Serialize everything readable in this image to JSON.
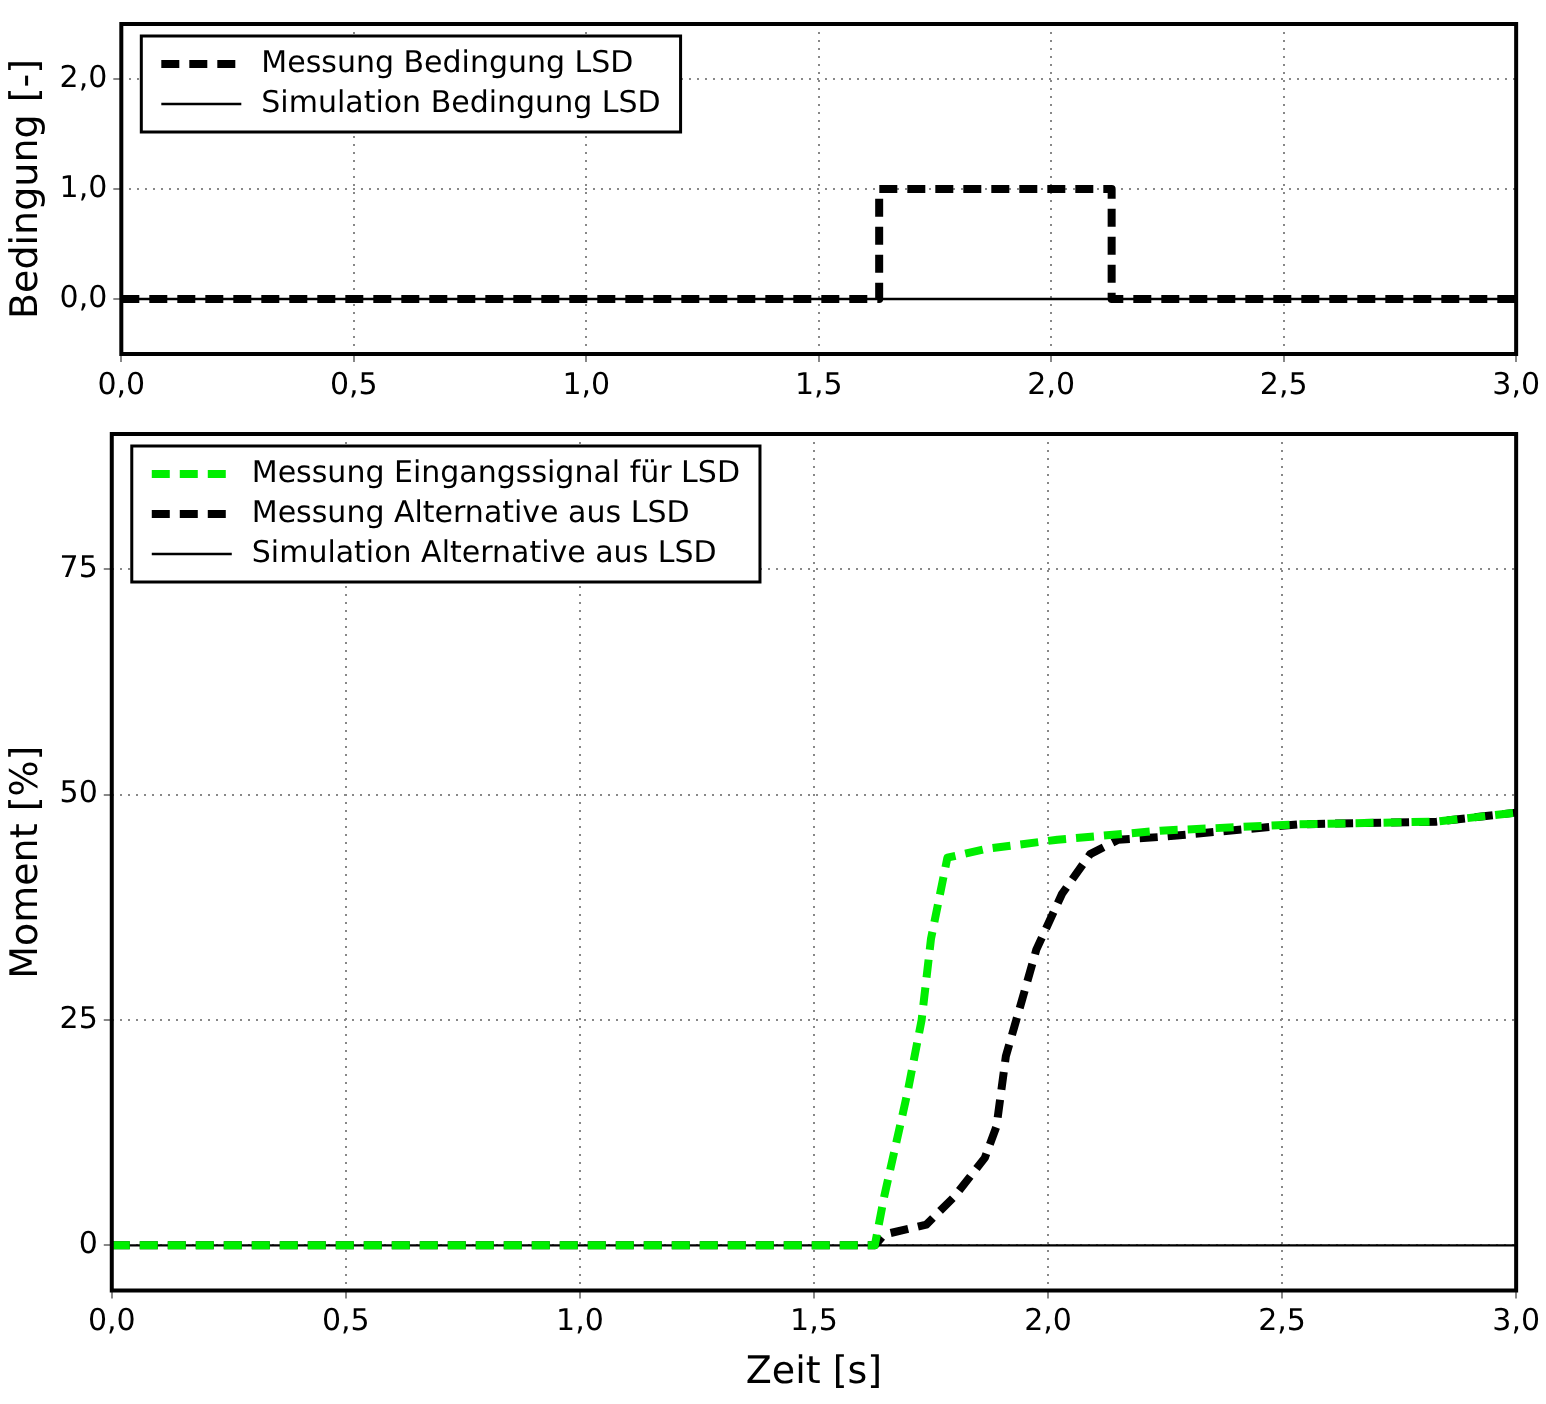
{
  "chart_data": [
    {
      "type": "line",
      "ylabel": "Bedingung [-]",
      "xlim": [
        0,
        3
      ],
      "ylim": [
        -0.5,
        2.5
      ],
      "xticks": [
        {
          "value": 0,
          "label": "0,0"
        },
        {
          "value": 0.5,
          "label": "0,5"
        },
        {
          "value": 1,
          "label": "1,0"
        },
        {
          "value": 1.5,
          "label": "1,5"
        },
        {
          "value": 2,
          "label": "2,0"
        },
        {
          "value": 2.5,
          "label": "2,5"
        },
        {
          "value": 3,
          "label": "3,0"
        }
      ],
      "yticks": [
        {
          "value": 0,
          "label": "0,0"
        },
        {
          "value": 1,
          "label": "1,0"
        },
        {
          "value": 2,
          "label": "2,0"
        }
      ],
      "grid": true,
      "legend": "top left",
      "marker": "none",
      "series": [
        {
          "name": "Messung Bedingung LSD",
          "color": "#000000",
          "line_style": "dashed",
          "x": [
            0,
            1.63,
            1.63,
            2.13,
            2.13,
            3
          ],
          "values": [
            0,
            0,
            1,
            1,
            0,
            0
          ]
        },
        {
          "name": "Simulation Bedingung LSD",
          "color": "#000000",
          "line_style": "solid",
          "x": [
            0,
            3
          ],
          "values": [
            0,
            0
          ]
        }
      ]
    },
    {
      "type": "line",
      "xlabel": "Zeit [s]",
      "ylabel": "Moment [%]",
      "xlim": [
        0,
        3
      ],
      "ylim": [
        -5,
        90
      ],
      "xticks": [
        {
          "value": 0,
          "label": "0,0"
        },
        {
          "value": 0.5,
          "label": "0,5"
        },
        {
          "value": 1,
          "label": "1,0"
        },
        {
          "value": 1.5,
          "label": "1,5"
        },
        {
          "value": 2,
          "label": "2,0"
        },
        {
          "value": 2.5,
          "label": "2,5"
        },
        {
          "value": 3,
          "label": "3,0"
        }
      ],
      "yticks": [
        0,
        25,
        50,
        75
      ],
      "grid": true,
      "legend": "top left",
      "marker": "none",
      "series": [
        {
          "name": "Messung Eingangssignal für LSD",
          "color": "#00ee00",
          "line_style": "dashed",
          "x": [
            0,
            1.63,
            1.65,
            1.7,
            1.73,
            1.75,
            1.785,
            1.87,
            2.02,
            2.24,
            2.535,
            2.83,
            3
          ],
          "values": [
            0,
            0,
            5.4,
            17,
            25,
            34,
            43,
            44,
            45,
            46,
            46.7,
            47,
            48
          ]
        },
        {
          "name": "Messung Alternative aus LSD",
          "color": "#000000",
          "line_style": "dashed",
          "x": [
            0,
            1.63,
            1.65,
            1.74,
            1.8,
            1.865,
            1.89,
            1.91,
            1.945,
            1.975,
            2.03,
            2.09,
            2.15,
            2.24,
            2.535,
            2.83,
            3
          ],
          "values": [
            0,
            0,
            1.2,
            2.3,
            5.4,
            9.7,
            13.2,
            21,
            27.3,
            32.8,
            39,
            43.4,
            45,
            45.3,
            46.7,
            47,
            48
          ]
        },
        {
          "name": "Simulation Alternative aus LSD",
          "color": "#000000",
          "line_style": "solid",
          "x": [
            0,
            3
          ],
          "values": [
            0,
            0
          ]
        }
      ]
    }
  ]
}
